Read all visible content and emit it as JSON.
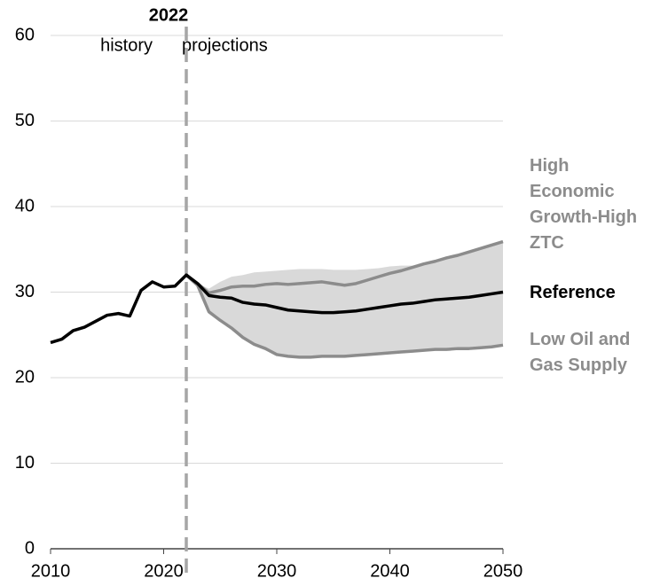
{
  "chart_data": {
    "type": "line",
    "divider_x": 2022,
    "annotations": [
      "history",
      "projections"
    ],
    "x": [
      2010,
      2011,
      2012,
      2013,
      2014,
      2015,
      2016,
      2017,
      2018,
      2019,
      2020,
      2021,
      2022,
      2023,
      2024,
      2025,
      2026,
      2027,
      2028,
      2029,
      2030,
      2031,
      2032,
      2033,
      2034,
      2035,
      2036,
      2037,
      2038,
      2039,
      2040,
      2041,
      2042,
      2043,
      2044,
      2045,
      2046,
      2047,
      2048,
      2049,
      2050
    ],
    "series": [
      {
        "name": "High Economic Growth-High ZTC",
        "color": "#8c8c8c",
        "values": [
          null,
          null,
          null,
          null,
          null,
          null,
          null,
          null,
          null,
          null,
          null,
          null,
          32.0,
          31.0,
          29.9,
          30.2,
          30.6,
          30.7,
          30.7,
          30.9,
          31.0,
          30.9,
          31.0,
          31.1,
          31.2,
          31.0,
          30.8,
          31.0,
          31.4,
          31.8,
          32.2,
          32.5,
          32.9,
          33.3,
          33.6,
          34.0,
          34.3,
          34.7,
          35.1,
          35.5,
          35.9
        ]
      },
      {
        "name": "Reference",
        "color": "#000000",
        "values": [
          24.1,
          24.5,
          25.5,
          25.9,
          26.6,
          27.3,
          27.5,
          27.2,
          30.2,
          31.2,
          30.6,
          30.7,
          32.0,
          31.0,
          29.6,
          29.4,
          29.3,
          28.8,
          28.6,
          28.5,
          28.2,
          27.9,
          27.8,
          27.7,
          27.6,
          27.6,
          27.7,
          27.8,
          28.0,
          28.2,
          28.4,
          28.6,
          28.7,
          28.9,
          29.1,
          29.2,
          29.3,
          29.4,
          29.6,
          29.8,
          30.0
        ]
      },
      {
        "name": "Low Oil and Gas Supply",
        "color": "#8c8c8c",
        "values": [
          null,
          null,
          null,
          null,
          null,
          null,
          null,
          null,
          null,
          null,
          null,
          null,
          32.0,
          30.8,
          27.7,
          26.7,
          25.8,
          24.7,
          23.9,
          23.4,
          22.7,
          22.5,
          22.4,
          22.4,
          22.5,
          22.5,
          22.5,
          22.6,
          22.7,
          22.8,
          22.9,
          23.0,
          23.1,
          23.2,
          23.3,
          23.3,
          23.4,
          23.4,
          23.5,
          23.6,
          23.8
        ]
      }
    ],
    "band": {
      "color": "#d9d9d9",
      "upper": [
        null,
        null,
        null,
        null,
        null,
        null,
        null,
        null,
        null,
        null,
        null,
        null,
        null,
        31.0,
        30.4,
        31.2,
        31.8,
        32.0,
        32.3,
        32.4,
        32.5,
        32.6,
        32.7,
        32.7,
        32.7,
        32.6,
        32.6,
        32.6,
        32.7,
        32.8,
        33.0,
        33.1,
        33.1,
        33.3,
        33.6,
        34.0,
        34.3,
        34.7,
        35.1,
        35.5,
        35.9
      ],
      "lower": [
        null,
        null,
        null,
        null,
        null,
        null,
        null,
        null,
        null,
        null,
        null,
        null,
        null,
        30.8,
        27.7,
        26.7,
        25.8,
        24.7,
        23.9,
        23.4,
        22.7,
        22.5,
        22.4,
        22.4,
        22.5,
        22.5,
        22.5,
        22.6,
        22.7,
        22.8,
        22.9,
        23.0,
        23.1,
        23.2,
        23.3,
        23.3,
        23.4,
        23.4,
        23.5,
        23.6,
        23.8
      ]
    },
    "xlim": [
      2010,
      2050
    ],
    "xticks": [
      2010,
      2020,
      2030,
      2040,
      2050
    ],
    "ylim": [
      0,
      60
    ],
    "yticks": [
      0,
      10,
      20,
      30,
      40,
      50,
      60
    ],
    "grid": true
  }
}
